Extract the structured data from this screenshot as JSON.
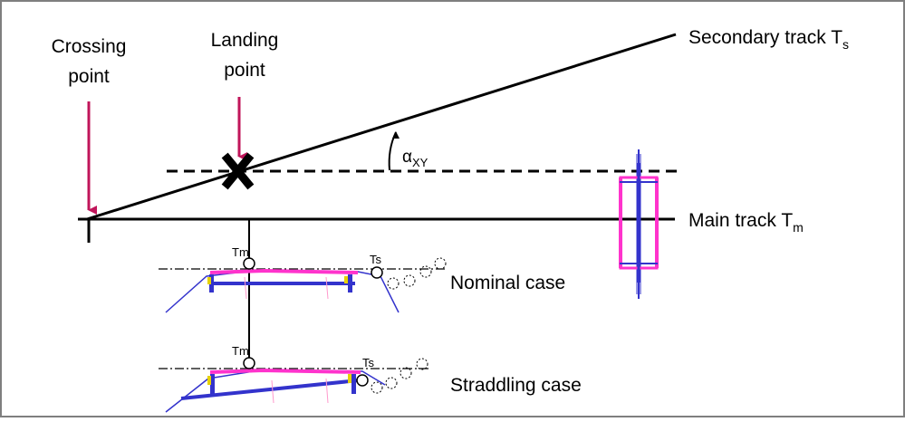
{
  "labels": {
    "crossing_point": [
      "Crossing",
      "point"
    ],
    "landing_point": [
      "Landing",
      "point"
    ],
    "secondary_track": "Secondary track T",
    "secondary_track_sub": "s",
    "main_track": "Main track T",
    "main_track_sub": "m",
    "angle": "α",
    "angle_sub": "XY",
    "nominal_case": "Nominal case",
    "straddling_case": "Straddling case",
    "tm": "Tm",
    "ts": "Ts"
  },
  "colors": {
    "frame": "#7f7f7f",
    "arrow": "#c0155a",
    "magenta": "#ff33cc",
    "blue": "#3333cc",
    "yellow": "#e6d200",
    "line": "#000000"
  },
  "icons": {
    "landing_marker": "x-cross-icon",
    "pointer_arrows": "arrow-down-icon",
    "angle_arc": "arc-arrow-icon"
  }
}
